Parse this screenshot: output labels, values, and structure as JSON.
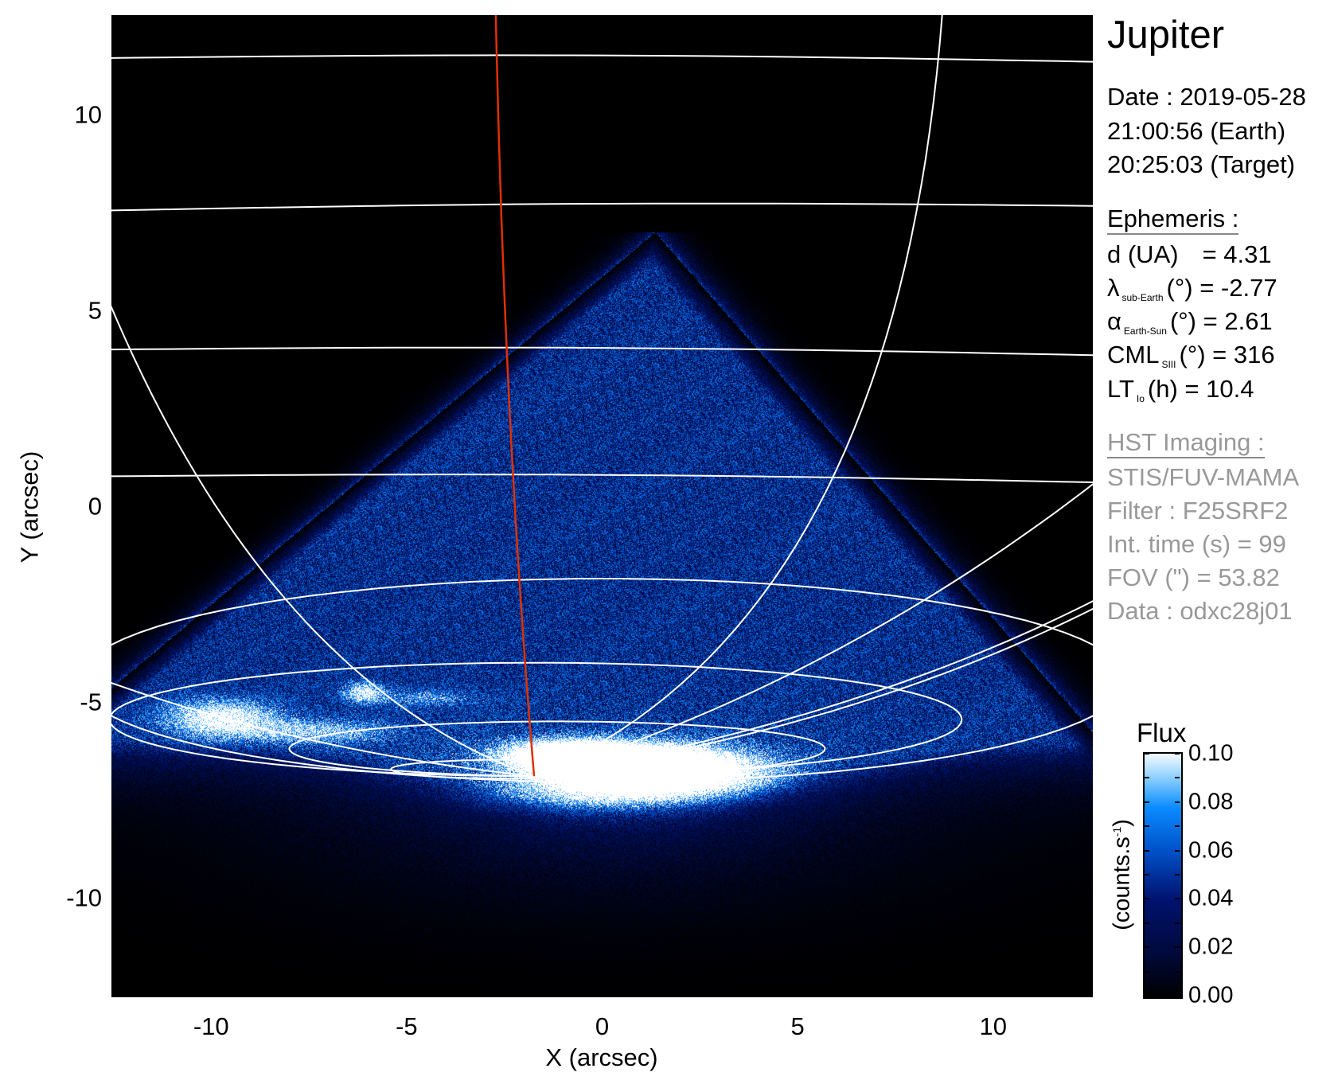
{
  "chart_data": {
    "type": "heatmap",
    "title": "Jupiter",
    "xlabel": "X (arcsec)",
    "ylabel": "Y (arcsec)",
    "xlim": [
      -12.55,
      12.55
    ],
    "ylim": [
      -12.55,
      12.55
    ],
    "xticks": [
      {
        "v": -10,
        "label": "-10"
      },
      {
        "v": -5,
        "label": "-5"
      },
      {
        "v": 0,
        "label": "0"
      },
      {
        "v": 5,
        "label": "5"
      },
      {
        "v": 10,
        "label": "10"
      }
    ],
    "yticks": [
      {
        "v": 10,
        "label": "10"
      },
      {
        "v": 5,
        "label": "5"
      },
      {
        "v": 0,
        "label": "0"
      },
      {
        "v": -5,
        "label": "-5"
      },
      {
        "v": -10,
        "label": "-10"
      }
    ],
    "colorbar": {
      "title": "Flux",
      "label": "(counts.s",
      "label_sup": "-1",
      "label_end": ")",
      "range": [
        0.0,
        0.1
      ],
      "ticks": [
        {
          "v": 0.1,
          "label": "0.10"
        },
        {
          "v": 0.08,
          "label": "0.08"
        },
        {
          "v": 0.06,
          "label": "0.06"
        },
        {
          "v": 0.04,
          "label": "0.04"
        },
        {
          "v": 0.02,
          "label": "0.02"
        },
        {
          "v": 0.0,
          "label": "0.00"
        }
      ],
      "colormap": [
        "#000000",
        "#000a40",
        "#00126e",
        "#0050c8",
        "#0a8cff",
        "#8ccfff",
        "#ffffff"
      ]
    },
    "grid_color": "#ffffff",
    "reference_meridian_color": "#e03000",
    "background_color": "#000000"
  },
  "info": {
    "target": "Jupiter",
    "date": "Date : 2019-05-28",
    "time_earth": "21:00:56 (Earth)",
    "time_target": "20:25:03 (Target)",
    "ephemeris_header": "Ephemeris :",
    "d": {
      "label": "d (UA)",
      "value": "= 4.31"
    },
    "lambda": {
      "symbol": "λ",
      "sub": "sub-Earth",
      "unit": "(°)",
      "value": "= -2.77"
    },
    "alpha": {
      "symbol": "α",
      "sub": "Earth-Sun",
      "unit": "(°)",
      "value": "= 2.61"
    },
    "cml": {
      "symbol": "CML",
      "sub": "SIII",
      "unit": "(°)",
      "value": "= 316"
    },
    "lt": {
      "symbol": "LT",
      "sub": "Io",
      "unit": "(h)",
      "value": "= 10.4"
    },
    "hst_header": "HST Imaging :",
    "instrument": "STIS/FUV-MAMA",
    "filter": "Filter : F25SRF2",
    "int_time": "Int. time (s) = 99",
    "fov": "FOV (\") = 53.82",
    "data_id": "Data : odxc28j01"
  }
}
